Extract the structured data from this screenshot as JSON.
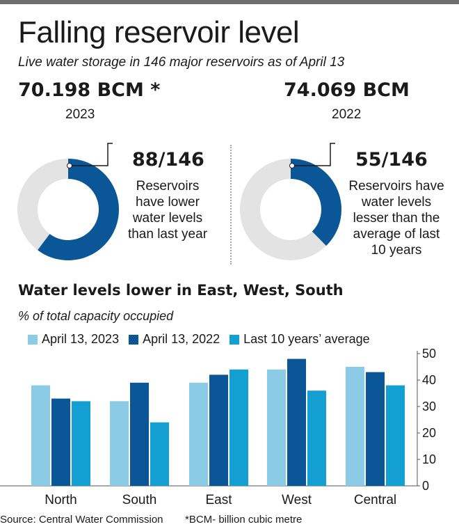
{
  "header": {
    "title": "Falling reservoir level",
    "subtitle": "Live water storage in 146 major reservoirs as of April 13"
  },
  "stats": [
    {
      "value": "70.198 BCM *",
      "year": "2023"
    },
    {
      "value": "74.069 BCM",
      "year": "2022"
    }
  ],
  "donuts": [
    {
      "count": "88/146",
      "numerator": 88,
      "denominator": 146,
      "description": [
        "Reservoirs",
        "have lower",
        "water levels",
        "than last year"
      ]
    },
    {
      "count": "55/146",
      "numerator": 55,
      "denominator": 146,
      "description": [
        "Reservoirs have",
        "water levels",
        "lesser than the",
        "average of last",
        "10 years"
      ]
    }
  ],
  "colors": {
    "series_2023": "#8ccbe6",
    "series_2022": "#0a5696",
    "series_avg": "#149fd3",
    "donut_bg": "#e3e3e3",
    "donut_fill": "#0a5696",
    "axis": "#555555"
  },
  "chart_data": {
    "type": "bar",
    "title": "Water levels lower in East, West, South",
    "subtitle": "% of total capacity occupied",
    "categories": [
      "North",
      "South",
      "East",
      "West",
      "Central"
    ],
    "series": [
      {
        "name": "April 13, 2023",
        "values": [
          38,
          32,
          39,
          44,
          45
        ]
      },
      {
        "name": "April 13, 2022",
        "values": [
          33,
          39,
          42,
          48,
          43
        ]
      },
      {
        "name": "Last 10 years’ average",
        "values": [
          32,
          24,
          44,
          36,
          38
        ]
      }
    ],
    "ylim": [
      0,
      50
    ],
    "yticks": [
      0,
      10,
      20,
      30,
      40,
      50
    ],
    "y_axis_side": "right",
    "grid": false,
    "legend": "top"
  },
  "footer": {
    "source": "Source: Central Water Commission",
    "note": "*BCM- billion cubic metre"
  }
}
